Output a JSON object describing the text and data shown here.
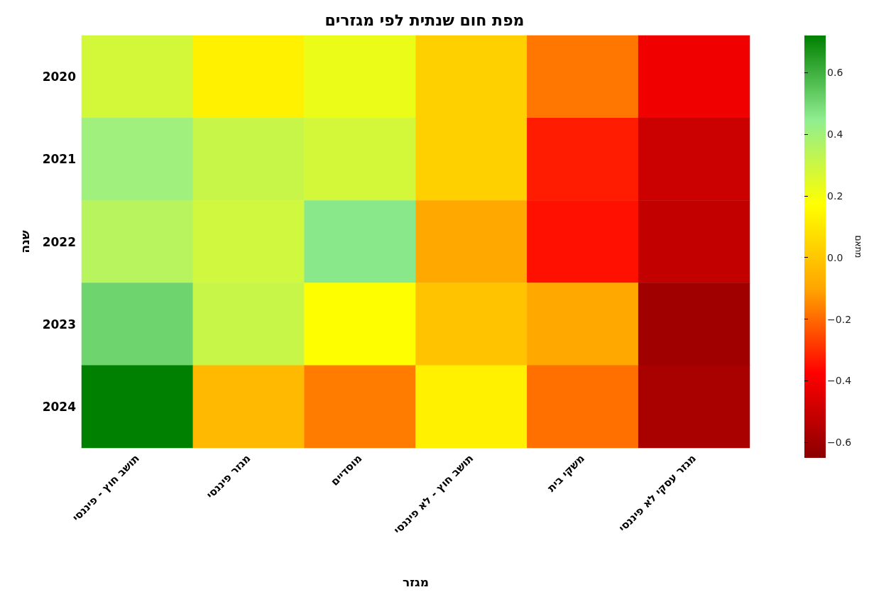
{
  "chart_data": {
    "type": "heatmap",
    "title": "מפת חום שנתית לפי מגזרים",
    "xlabel": "מגזר",
    "ylabel": "שנה",
    "clabel": "מתאם",
    "categories": [
      "תושב חוץ - פיננסי",
      "מגזר פיננסי",
      "מוסדיים",
      "תושב חוץ - לא פיננסי",
      "משקי בית",
      "מגזר עסקי לא פיננסי"
    ],
    "y_categories": [
      "2020",
      "2021",
      "2022",
      "2023",
      "2024"
    ],
    "cells": [
      [
        0.28,
        0.13,
        0.22,
        0.03,
        -0.18,
        -0.41
      ],
      [
        0.41,
        0.31,
        0.28,
        0.03,
        -0.33,
        -0.5
      ],
      [
        0.35,
        0.29,
        0.46,
        -0.09,
        -0.35,
        -0.52
      ],
      [
        0.51,
        0.31,
        0.17,
        -0.01,
        -0.09,
        -0.6
      ],
      [
        0.72,
        -0.04,
        -0.17,
        0.13,
        -0.19,
        -0.58
      ]
    ],
    "clim": [
      -0.65,
      0.72
    ],
    "cticks": [
      {
        "value": -0.6,
        "label": "−0.6"
      },
      {
        "value": -0.4,
        "label": "−0.4"
      },
      {
        "value": -0.2,
        "label": "−0.2"
      },
      {
        "value": 0,
        "label": "0.0"
      },
      {
        "value": 0.2,
        "label": "0.2"
      },
      {
        "value": 0.4,
        "label": "0.4"
      },
      {
        "value": 0.6,
        "label": "0.6"
      }
    ],
    "colors": [
      "#8b0000",
      "#ff0000",
      "#ffa500",
      "#ffff00",
      "#90ee90",
      "#008000"
    ]
  }
}
